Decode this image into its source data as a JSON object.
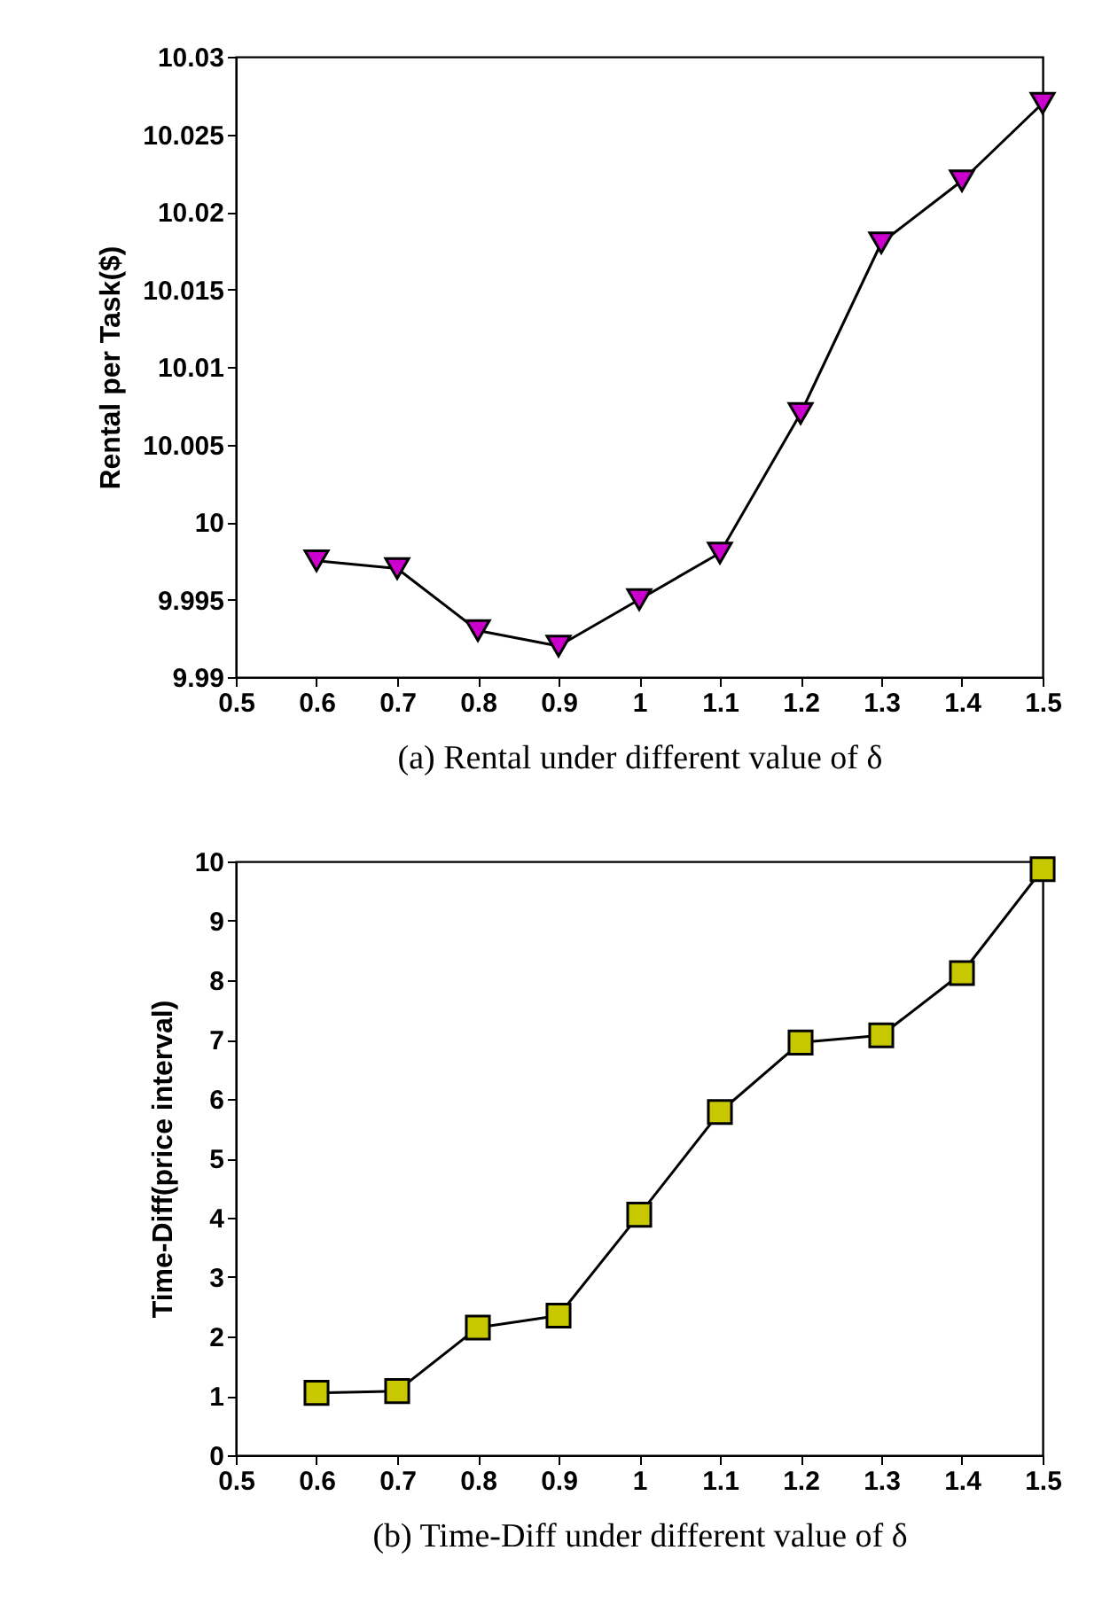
{
  "chart_data": [
    {
      "type": "line",
      "xlabel": "(a)  Rental under different value of δ",
      "ylabel": "Rental per Task($)",
      "x": [
        0.6,
        0.7,
        0.8,
        0.9,
        1,
        1.1,
        1.2,
        1.3,
        1.4,
        1.5
      ],
      "series": [
        {
          "color": "#cc00cc",
          "values": [
            9.9975,
            9.997,
            9.993,
            9.992,
            9.995,
            9.998,
            10.007,
            10.018,
            10.022,
            10.027
          ]
        }
      ],
      "xlim": [
        0.5,
        1.5
      ],
      "xticks": [
        0.5,
        0.6,
        0.7,
        0.8,
        0.9,
        1,
        1.1,
        1.2,
        1.3,
        1.4,
        1.5
      ],
      "ylim": [
        9.99,
        10.03
      ],
      "yticks": [
        9.99,
        9.995,
        10,
        10.005,
        10.01,
        10.015,
        10.02,
        10.025,
        10.03
      ],
      "marker": "triangle",
      "grid": false
    },
    {
      "type": "line",
      "xlabel": "(b)  Time-Diff under different value of δ",
      "ylabel": "Time-Diff(price interval)",
      "x": [
        0.6,
        0.7,
        0.8,
        0.9,
        1,
        1.1,
        1.2,
        1.3,
        1.4,
        1.5
      ],
      "series": [
        {
          "color": "#c8c800",
          "values": [
            1.05,
            1.08,
            2.15,
            2.35,
            4.05,
            5.78,
            6.95,
            7.07,
            8.12,
            9.87
          ]
        }
      ],
      "xlim": [
        0.5,
        1.5
      ],
      "xticks": [
        0.5,
        0.6,
        0.7,
        0.8,
        0.9,
        1,
        1.1,
        1.2,
        1.3,
        1.4,
        1.5
      ],
      "ylim": [
        0,
        10
      ],
      "yticks": [
        0,
        1,
        2,
        3,
        4,
        5,
        6,
        7,
        8,
        9,
        10
      ],
      "marker": "square",
      "grid": false
    }
  ]
}
